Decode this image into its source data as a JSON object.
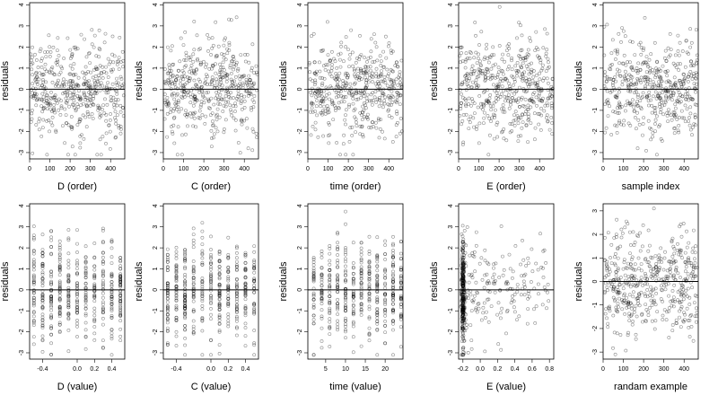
{
  "chart_data": [
    {
      "type": "scatter",
      "panel": "D (order)",
      "xlabel": "D (order)",
      "ylabel": "residuals",
      "xlim": [
        0,
        470
      ],
      "ylim": [
        -3.3,
        4.1
      ],
      "xticks": [
        0,
        100,
        200,
        300,
        400
      ],
      "yticks": [
        -3,
        -2,
        -1,
        0,
        1,
        2,
        3,
        4
      ],
      "hline": 0,
      "n_points": 470,
      "x_distribution": "uniform",
      "cluster_y": [
        -1.3,
        0.8
      ],
      "clusters": [
        [
          0,
          2.5
        ],
        [
          1,
          2.5
        ]
      ]
    },
    {
      "type": "scatter",
      "panel": "C (order)",
      "xlabel": "C (order)",
      "ylabel": "residuals",
      "xlim": [
        0,
        470
      ],
      "ylim": [
        -3.3,
        4.1
      ],
      "xticks": [
        0,
        100,
        200,
        300,
        400
      ],
      "yticks": [
        -3,
        -2,
        -1,
        0,
        1,
        2,
        3,
        4
      ],
      "hline": 0,
      "n_points": 470,
      "x_distribution": "uniform"
    },
    {
      "type": "scatter",
      "panel": "time (order)",
      "xlabel": "time (order)",
      "ylabel": "residuals",
      "xlim": [
        0,
        470
      ],
      "ylim": [
        -3.3,
        4.1
      ],
      "xticks": [
        0,
        100,
        200,
        300,
        400
      ],
      "yticks": [
        -3,
        -2,
        -1,
        0,
        1,
        2,
        3,
        4
      ],
      "hline": 0,
      "n_points": 470,
      "x_distribution": "uniform"
    },
    {
      "type": "scatter",
      "panel": "E (order)",
      "xlabel": "E (order)",
      "ylabel": "residuals",
      "xlim": [
        0,
        470
      ],
      "ylim": [
        -3.3,
        4.1
      ],
      "xticks": [
        0,
        100,
        200,
        300,
        400
      ],
      "yticks": [
        -3,
        -2,
        -1,
        0,
        1,
        2,
        3,
        4
      ],
      "hline": 0,
      "n_points": 470,
      "x_distribution": "uniform"
    },
    {
      "type": "scatter",
      "panel": "sample index",
      "xlabel": "sample index",
      "ylabel": "residuals",
      "xlim": [
        0,
        470
      ],
      "ylim": [
        -3.3,
        4.1
      ],
      "xticks": [
        0,
        100,
        200,
        300,
        400
      ],
      "yticks": [
        -3,
        -2,
        -1,
        0,
        1,
        2,
        3,
        4
      ],
      "hline": 0,
      "n_points": 470,
      "x_distribution": "uniform"
    },
    {
      "type": "scatter",
      "panel": "D (value)",
      "xlabel": "D (value)",
      "ylabel": "residuals",
      "xlim": [
        -0.55,
        0.55
      ],
      "ylim": [
        -3.3,
        4.1
      ],
      "xticks": [
        -0.4,
        0.0,
        0.2,
        0.4
      ],
      "xtick_labels": [
        "-0.4",
        "0.0",
        "0.2",
        "0.4"
      ],
      "yticks": [
        -3,
        -2,
        -1,
        0,
        1,
        2,
        3,
        4
      ],
      "hline": 0,
      "n_points": 470,
      "x_distribution": "discrete",
      "x_values": [
        -0.5,
        -0.4,
        -0.3,
        -0.2,
        -0.1,
        0.0,
        0.1,
        0.2,
        0.3,
        0.4,
        0.5
      ]
    },
    {
      "type": "scatter",
      "panel": "C (value)",
      "xlabel": "C (value)",
      "ylabel": "residuals",
      "xlim": [
        -0.55,
        0.55
      ],
      "ylim": [
        -3.3,
        4.1
      ],
      "xticks": [
        -0.4,
        0.0,
        0.2,
        0.4
      ],
      "xtick_labels": [
        "-0.4",
        "0.0",
        "0.2",
        "0.4"
      ],
      "yticks": [
        -3,
        -2,
        -1,
        0,
        1,
        2,
        3,
        4
      ],
      "hline": 0,
      "n_points": 470,
      "x_distribution": "discrete",
      "x_values": [
        -0.5,
        -0.4,
        -0.3,
        -0.2,
        -0.1,
        0.0,
        0.1,
        0.2,
        0.3,
        0.4,
        0.5
      ]
    },
    {
      "type": "scatter",
      "panel": "time (value)",
      "xlabel": "time (value)",
      "ylabel": "residuals",
      "xlim": [
        0.5,
        24.5
      ],
      "ylim": [
        -3.3,
        4.1
      ],
      "xticks": [
        5,
        10,
        15,
        20
      ],
      "yticks": [
        -3,
        -2,
        -1,
        0,
        1,
        2,
        3,
        4
      ],
      "hline": 0,
      "n_points": 470,
      "x_distribution": "discrete",
      "x_values": [
        2,
        4,
        6,
        8,
        10,
        12,
        14,
        16,
        18,
        20,
        22,
        24
      ]
    },
    {
      "type": "scatter",
      "panel": "E (value)",
      "xlabel": "E (value)",
      "ylabel": "residuals",
      "xlim": [
        -0.25,
        0.85
      ],
      "ylim": [
        -3.3,
        4.1
      ],
      "xticks": [
        -0.2,
        0.0,
        0.2,
        0.4,
        0.6,
        0.8
      ],
      "xtick_labels": [
        "-0.2",
        "0.0",
        "0.2",
        "0.4",
        "0.6",
        "0.8"
      ],
      "yticks": [
        -3,
        -2,
        -1,
        0,
        1,
        2,
        3,
        4
      ],
      "hline": 0,
      "n_points": 470,
      "x_distribution": "skewed"
    },
    {
      "type": "scatter",
      "panel": "randam example",
      "xlabel": "randam example",
      "ylabel": "residuals",
      "xlim": [
        0,
        470
      ],
      "ylim": [
        -3.3,
        3.3
      ],
      "xticks": [
        0,
        100,
        200,
        300,
        400
      ],
      "yticks": [
        -3,
        -2,
        -1,
        0,
        1,
        2,
        3
      ],
      "hline": 0,
      "n_points": 470,
      "x_distribution": "uniform"
    }
  ]
}
